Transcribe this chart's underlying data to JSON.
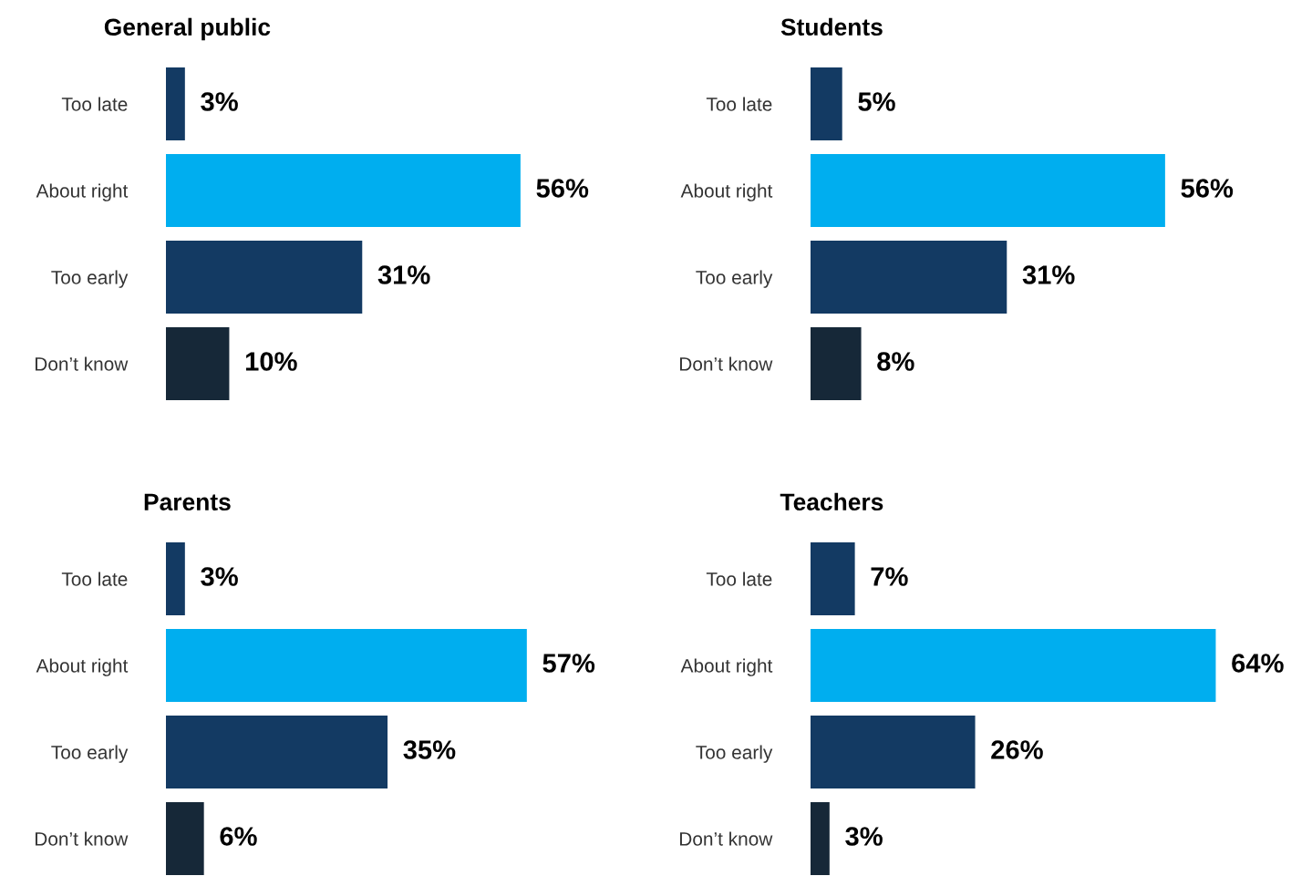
{
  "chart_data": [
    {
      "type": "bar",
      "orientation": "horizontal",
      "title": "General public",
      "categories": [
        "Too late",
        "About right",
        "Too early",
        "Don’t know"
      ],
      "values": [
        3,
        56,
        31,
        10
      ],
      "value_labels": [
        "3%",
        "56%",
        "31%",
        "10%"
      ],
      "colors": [
        "#133a63",
        "#00aeef",
        "#133a63",
        "#162838"
      ],
      "tick_labels": "y"
    },
    {
      "type": "bar",
      "orientation": "horizontal",
      "title": "Students",
      "categories": [
        "Too late",
        "About right",
        "Too early",
        "Don’t know"
      ],
      "values": [
        5,
        56,
        31,
        8
      ],
      "value_labels": [
        "5%",
        "56%",
        "31%",
        "8%"
      ],
      "colors": [
        "#133a63",
        "#00aeef",
        "#133a63",
        "#162838"
      ],
      "tick_labels": "y"
    },
    {
      "type": "bar",
      "orientation": "horizontal",
      "title": "Parents",
      "categories": [
        "Too late",
        "About right",
        "Too early",
        "Don’t know"
      ],
      "values": [
        3,
        57,
        35,
        6
      ],
      "value_labels": [
        "3%",
        "57%",
        "35%",
        "6%"
      ],
      "colors": [
        "#133a63",
        "#00aeef",
        "#133a63",
        "#162838"
      ],
      "tick_labels": "y"
    },
    {
      "type": "bar",
      "orientation": "horizontal",
      "title": "Teachers",
      "categories": [
        "Too late",
        "About right",
        "Too early",
        "Don’t know"
      ],
      "values": [
        7,
        64,
        26,
        3
      ],
      "value_labels": [
        "7%",
        "64%",
        "26%",
        "3%"
      ],
      "colors": [
        "#133a63",
        "#00aeef",
        "#133a63",
        "#162838"
      ],
      "tick_labels": "y"
    }
  ]
}
